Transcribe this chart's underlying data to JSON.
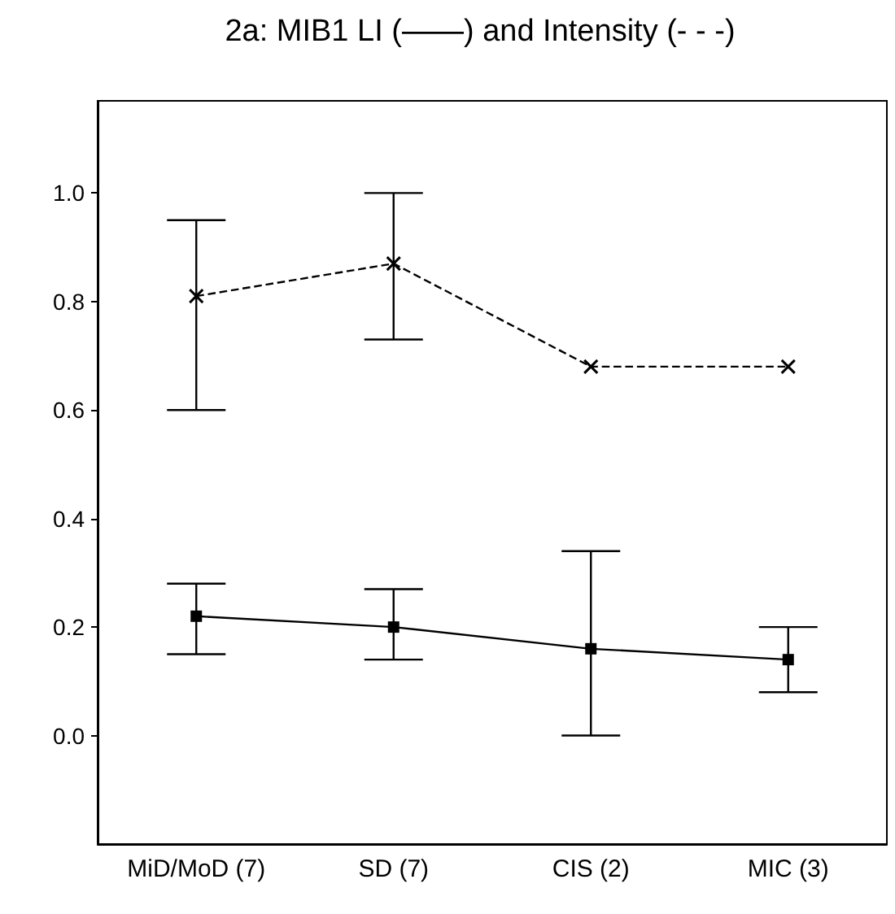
{
  "chart_data": {
    "type": "line",
    "title": "2a: MIB1 LI (——) and Intensity (- - -)",
    "categories": [
      "MiD/MoD (7)",
      "SD (7)",
      "CIS (2)",
      "MIC (3)"
    ],
    "series": [
      {
        "color": "#000000",
        "marker": "cross",
        "line_style": "dashed",
        "values": [
          0.81,
          0.87,
          0.68,
          0.68
        ],
        "errors": [
          [
            0.6,
            0.95
          ],
          [
            0.73,
            1.0
          ],
          null,
          null
        ]
      },
      {
        "color": "#000000",
        "marker": "square",
        "line_style": "solid",
        "values": [
          0.22,
          0.2,
          0.16,
          0.14
        ],
        "errors": [
          [
            0.15,
            0.28
          ],
          [
            0.14,
            0.27
          ],
          [
            0.0,
            0.34
          ],
          [
            0.08,
            0.2
          ]
        ]
      }
    ],
    "ylim": [
      -0.2,
      1.17
    ],
    "yticks": [
      {
        "value": 0,
        "label": "0.0"
      },
      0.2,
      0.4,
      0.6,
      0.8,
      {
        "value": 1,
        "label": "1.0"
      }
    ],
    "grid": false
  }
}
